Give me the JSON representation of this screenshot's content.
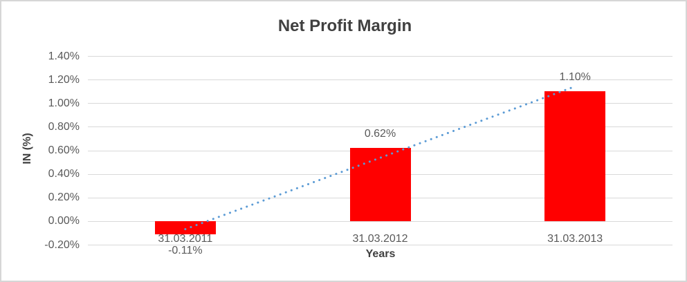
{
  "chart_data": {
    "type": "bar",
    "title": "Net Profit Margin",
    "xlabel": "Years",
    "ylabel": "IN (%)",
    "categories": [
      "31.03.2011",
      "31.03.2012",
      "31.03.2013"
    ],
    "values": [
      -0.11,
      0.62,
      1.1
    ],
    "data_labels": [
      "-0.11%",
      "0.62%",
      "1.10%"
    ],
    "ylim": [
      -0.2,
      1.4
    ],
    "ytick_step": 0.2,
    "ytick_labels": [
      "1.40%",
      "1.20%",
      "1.00%",
      "0.80%",
      "0.60%",
      "0.40%",
      "0.20%",
      "0.00%",
      "-0.20%"
    ],
    "grid": true,
    "legend": "none",
    "bar_color": "#ff0000",
    "trendline": {
      "type": "linear",
      "style": "dotted",
      "color": "#5b9bd5"
    }
  },
  "colors": {
    "gridline": "#d9d9d9",
    "tick_text": "#595959",
    "title_text": "#404040",
    "chart_border": "#d6d6d6",
    "background": "#ffffff"
  }
}
